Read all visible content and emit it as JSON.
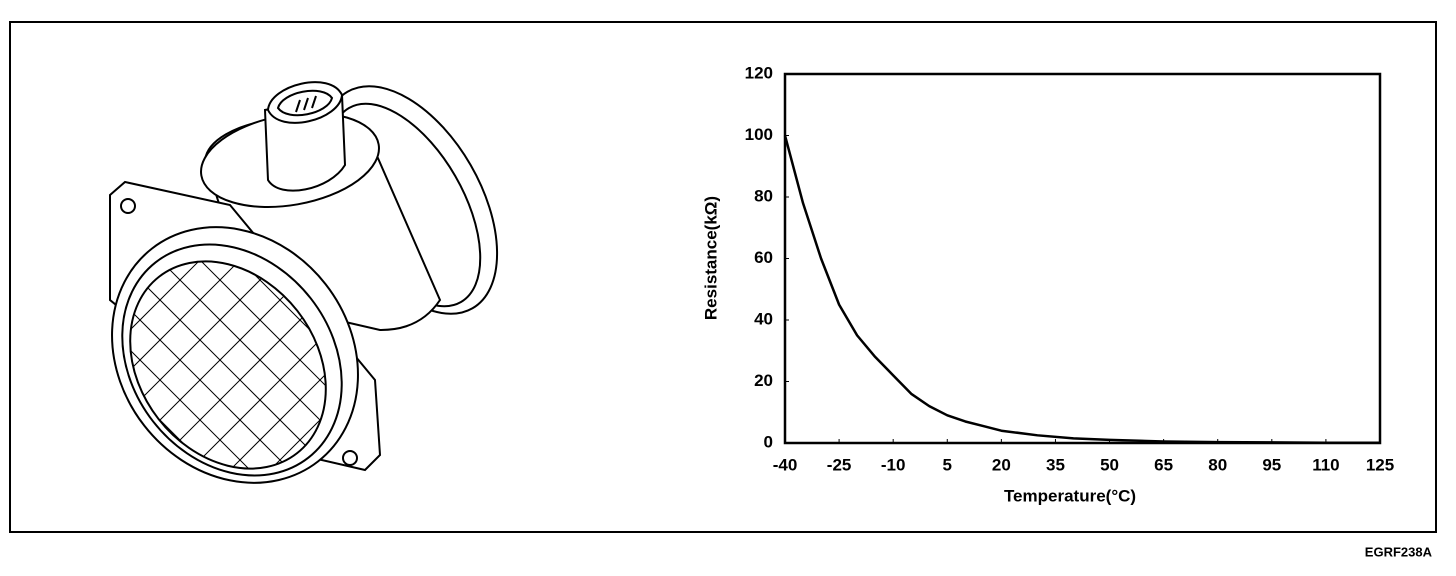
{
  "figure_code": "EGRF238A",
  "chart_data": {
    "type": "line",
    "xlabel": "Temperature(°C)",
    "ylabel": "Resistance(kΩ)",
    "x": [
      -40,
      -35,
      -30,
      -25,
      -20,
      -15,
      -10,
      -5,
      0,
      5,
      10,
      15,
      20,
      30,
      40,
      50,
      65,
      80,
      95,
      110,
      125
    ],
    "values": [
      100,
      78,
      60,
      45,
      35,
      28,
      22,
      16,
      12,
      9,
      7,
      5.5,
      4,
      2.5,
      1.5,
      1,
      0.5,
      0.3,
      0.2,
      0.1,
      0.1
    ],
    "color": "#000000",
    "xlim": [
      -40,
      125
    ],
    "xticks": [
      -40,
      -25,
      -10,
      5,
      20,
      35,
      50,
      65,
      80,
      95,
      110,
      125
    ],
    "ylim": [
      0,
      120
    ],
    "yticks": [
      0,
      20,
      40,
      60,
      80,
      100,
      120
    ],
    "grid": false
  }
}
